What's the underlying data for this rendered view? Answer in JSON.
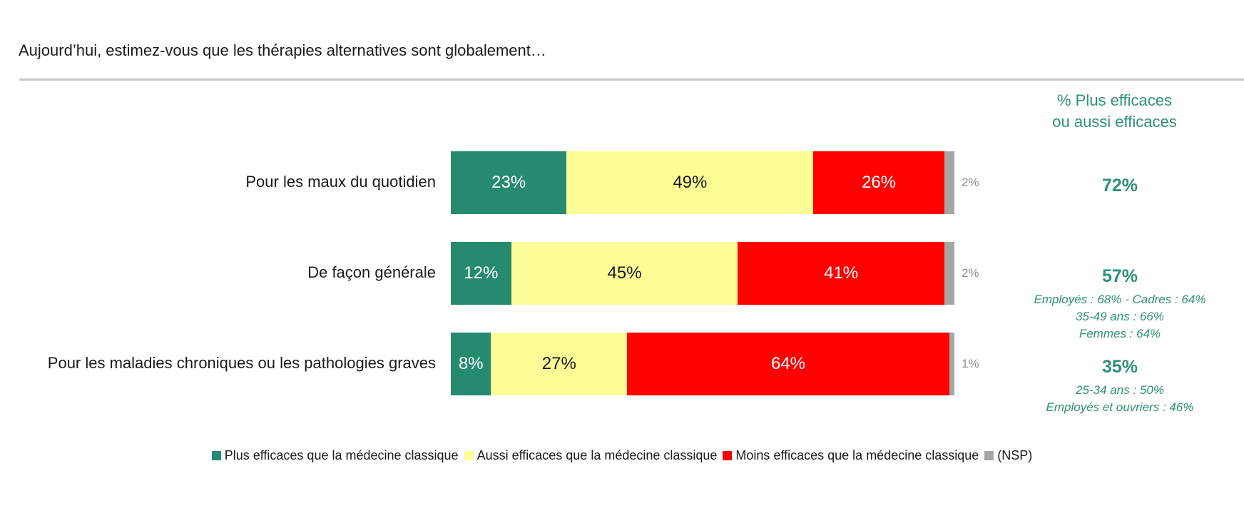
{
  "question": "Aujourd’hui, estimez-vous que les thérapies alternatives sont globalement…",
  "side_header": {
    "line1": "% Plus efficaces",
    "line2": "ou aussi efficaces"
  },
  "colors": {
    "plus": "#268a71",
    "aussi": "#fdfd98",
    "moins": "#fe0000",
    "nsp": "#a6a6a6",
    "accent": "#2f8f78"
  },
  "chart_data": {
    "type": "bar",
    "orientation": "horizontal",
    "stacked": true,
    "title": "Aujourd’hui, estimez-vous que les thérapies alternatives sont globalement…",
    "categories": [
      "Pour les maux du quotidien",
      "De façon générale",
      "Pour les maladies chroniques ou les pathologies graves"
    ],
    "series": [
      {
        "name": "Plus efficaces que la médecine classique",
        "values": [
          23,
          12,
          8
        ],
        "labels": [
          "23%",
          "12%",
          "8%"
        ]
      },
      {
        "name": "Aussi efficaces que la médecine classique",
        "values": [
          49,
          45,
          27
        ],
        "labels": [
          "49%",
          "45%",
          "27%"
        ]
      },
      {
        "name": "Moins efficaces que la médecine classique",
        "values": [
          26,
          41,
          64
        ],
        "labels": [
          "26%",
          "41%",
          "64%"
        ]
      },
      {
        "name": "(NSP)",
        "values": [
          2,
          2,
          1
        ],
        "labels": [
          "2%",
          "2%",
          "1%"
        ]
      }
    ],
    "xlim": [
      0,
      100
    ],
    "legend_position": "bottom"
  },
  "side_totals": [
    {
      "value": "72%",
      "notes": []
    },
    {
      "value": "57%",
      "notes": [
        "Employés : 68% - Cadres : 64%",
        "35-49 ans : 66%",
        "Femmes : 64%"
      ]
    },
    {
      "value": "35%",
      "notes": [
        "25-34 ans : 50%",
        "Employés et ouvriers : 46%"
      ]
    }
  ],
  "legend": [
    {
      "label": "Plus efficaces que la médecine classique",
      "color": "#268a71"
    },
    {
      "label": "Aussi efficaces que la médecine classique",
      "color": "#fdfd98"
    },
    {
      "label": "Moins efficaces que la médecine classique",
      "color": "#fe0000"
    },
    {
      "label": "(NSP)",
      "color": "#a6a6a6"
    }
  ]
}
